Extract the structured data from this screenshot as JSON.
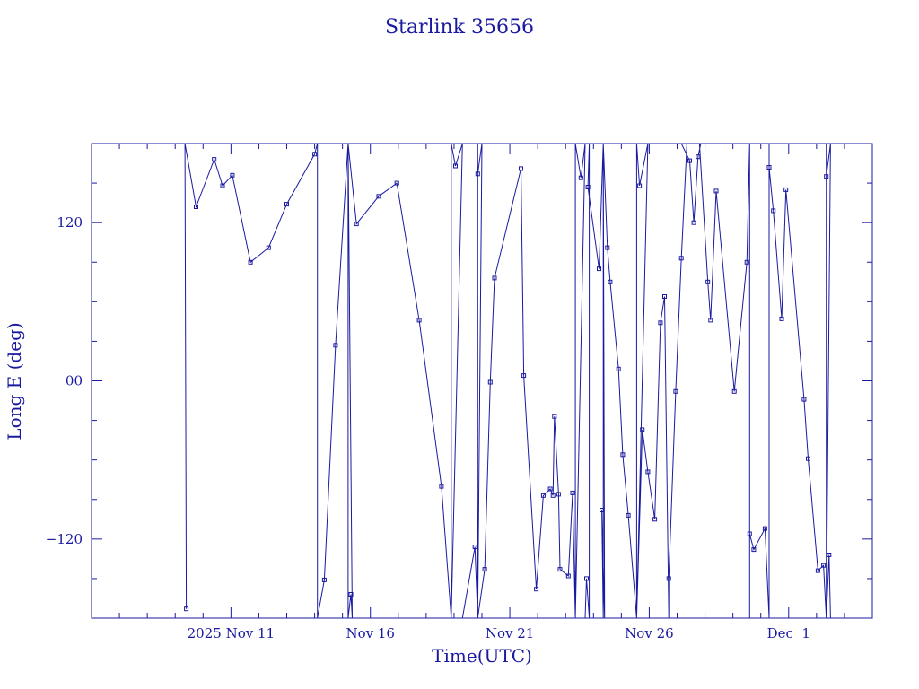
{
  "chart_data": {
    "type": "line",
    "title": "Starlink 35656",
    "xlabel": "Time(UTC)",
    "ylabel": "Long E (deg)",
    "x_unit": "day",
    "xlim": [
      6.0,
      34.0
    ],
    "ylim": [
      -180,
      180
    ],
    "x_ticks": [
      {
        "x": 11.0,
        "label": "2025 Nov 11"
      },
      {
        "x": 16.0,
        "label": "Nov 16"
      },
      {
        "x": 21.0,
        "label": "Nov 21"
      },
      {
        "x": 26.0,
        "label": "Nov 26"
      },
      {
        "x": 31.0,
        "label": "Dec  1"
      }
    ],
    "y_ticks": [
      {
        "y": 120,
        "label": "120"
      },
      {
        "y": 0,
        "label": "00"
      },
      {
        "y": -120,
        "label": "−120"
      }
    ],
    "x_minor_step": 1,
    "y_minor_step": 30,
    "series": [
      {
        "points": [
          [
            9.4,
            -173
          ],
          [
            9.35,
            180
          ],
          [
            9.75,
            132
          ],
          [
            10.4,
            168
          ],
          [
            10.7,
            148
          ],
          [
            11.05,
            156
          ],
          [
            11.7,
            90
          ],
          [
            12.35,
            101
          ],
          [
            13.0,
            134
          ],
          [
            14.0,
            172
          ],
          [
            14.1,
            180
          ],
          [
            14.1,
            -180
          ],
          [
            14.35,
            -151
          ],
          [
            14.75,
            27
          ],
          [
            15.2,
            180
          ],
          [
            15.2,
            -180
          ],
          [
            15.3,
            -162
          ],
          [
            15.35,
            -180
          ],
          [
            15.2,
            180
          ],
          [
            15.5,
            119
          ],
          [
            16.3,
            140
          ],
          [
            16.95,
            150
          ],
          [
            17.75,
            46
          ],
          [
            18.55,
            -80
          ],
          [
            18.9,
            -180
          ],
          [
            18.9,
            180
          ],
          [
            19.05,
            163
          ],
          [
            19.3,
            180
          ],
          [
            18.9,
            -180
          ],
          [
            19.3,
            -180
          ],
          [
            19.75,
            -126
          ],
          [
            19.85,
            -180
          ],
          [
            19.85,
            180
          ],
          [
            19.85,
            157
          ],
          [
            20.0,
            180
          ],
          [
            19.85,
            -180
          ],
          [
            20.1,
            -143
          ],
          [
            20.3,
            -1
          ],
          [
            20.45,
            78
          ],
          [
            21.4,
            161
          ],
          [
            21.5,
            4
          ],
          [
            21.95,
            -158
          ],
          [
            22.2,
            -87
          ],
          [
            22.45,
            -82
          ],
          [
            22.55,
            -87
          ],
          [
            22.6,
            -27
          ],
          [
            22.75,
            -86
          ],
          [
            22.8,
            -143
          ],
          [
            23.1,
            -148
          ],
          [
            23.25,
            -85
          ],
          [
            23.35,
            -180
          ],
          [
            23.35,
            180
          ],
          [
            23.55,
            154
          ],
          [
            23.7,
            180
          ],
          [
            23.35,
            -180
          ],
          [
            23.7,
            -180
          ],
          [
            23.75,
            -150
          ],
          [
            23.85,
            -180
          ],
          [
            23.85,
            180
          ],
          [
            23.8,
            147
          ],
          [
            24.2,
            85
          ],
          [
            24.35,
            180
          ],
          [
            24.35,
            -180
          ],
          [
            24.3,
            -98
          ],
          [
            24.4,
            -180
          ],
          [
            24.35,
            180
          ],
          [
            24.5,
            101
          ],
          [
            24.6,
            75
          ],
          [
            24.9,
            9
          ],
          [
            25.05,
            -56
          ],
          [
            25.25,
            -102
          ],
          [
            25.55,
            -180
          ],
          [
            25.55,
            180
          ],
          [
            25.65,
            148
          ],
          [
            25.95,
            180
          ],
          [
            25.55,
            -180
          ],
          [
            25.75,
            -37
          ],
          [
            25.95,
            -69
          ],
          [
            26.2,
            -105
          ],
          [
            26.4,
            44
          ],
          [
            26.55,
            64
          ],
          [
            26.7,
            -180
          ],
          [
            26.7,
            -150
          ],
          [
            26.95,
            -8
          ],
          [
            27.15,
            93
          ],
          [
            27.35,
            180
          ],
          [
            27.15,
            180
          ],
          [
            27.45,
            167
          ],
          [
            27.6,
            120
          ],
          [
            27.75,
            170
          ],
          [
            27.85,
            180
          ],
          [
            27.8,
            180
          ],
          [
            28.1,
            75
          ],
          [
            28.2,
            46
          ],
          [
            28.4,
            144
          ],
          [
            29.05,
            -8
          ],
          [
            29.5,
            90
          ],
          [
            29.6,
            180
          ],
          [
            29.6,
            -180
          ],
          [
            29.6,
            -116
          ],
          [
            29.75,
            -128
          ],
          [
            30.15,
            -112
          ],
          [
            30.3,
            -180
          ],
          [
            30.3,
            180
          ],
          [
            30.3,
            162
          ],
          [
            30.45,
            129
          ],
          [
            30.75,
            47
          ],
          [
            30.9,
            145
          ],
          [
            31.55,
            -14
          ],
          [
            31.7,
            -59
          ],
          [
            32.05,
            -144
          ],
          [
            32.25,
            -140
          ],
          [
            32.35,
            -180
          ],
          [
            32.35,
            180
          ],
          [
            32.35,
            155
          ],
          [
            32.5,
            180
          ],
          [
            32.35,
            -180
          ],
          [
            32.45,
            -132
          ],
          [
            32.5,
            -180
          ]
        ]
      }
    ]
  }
}
